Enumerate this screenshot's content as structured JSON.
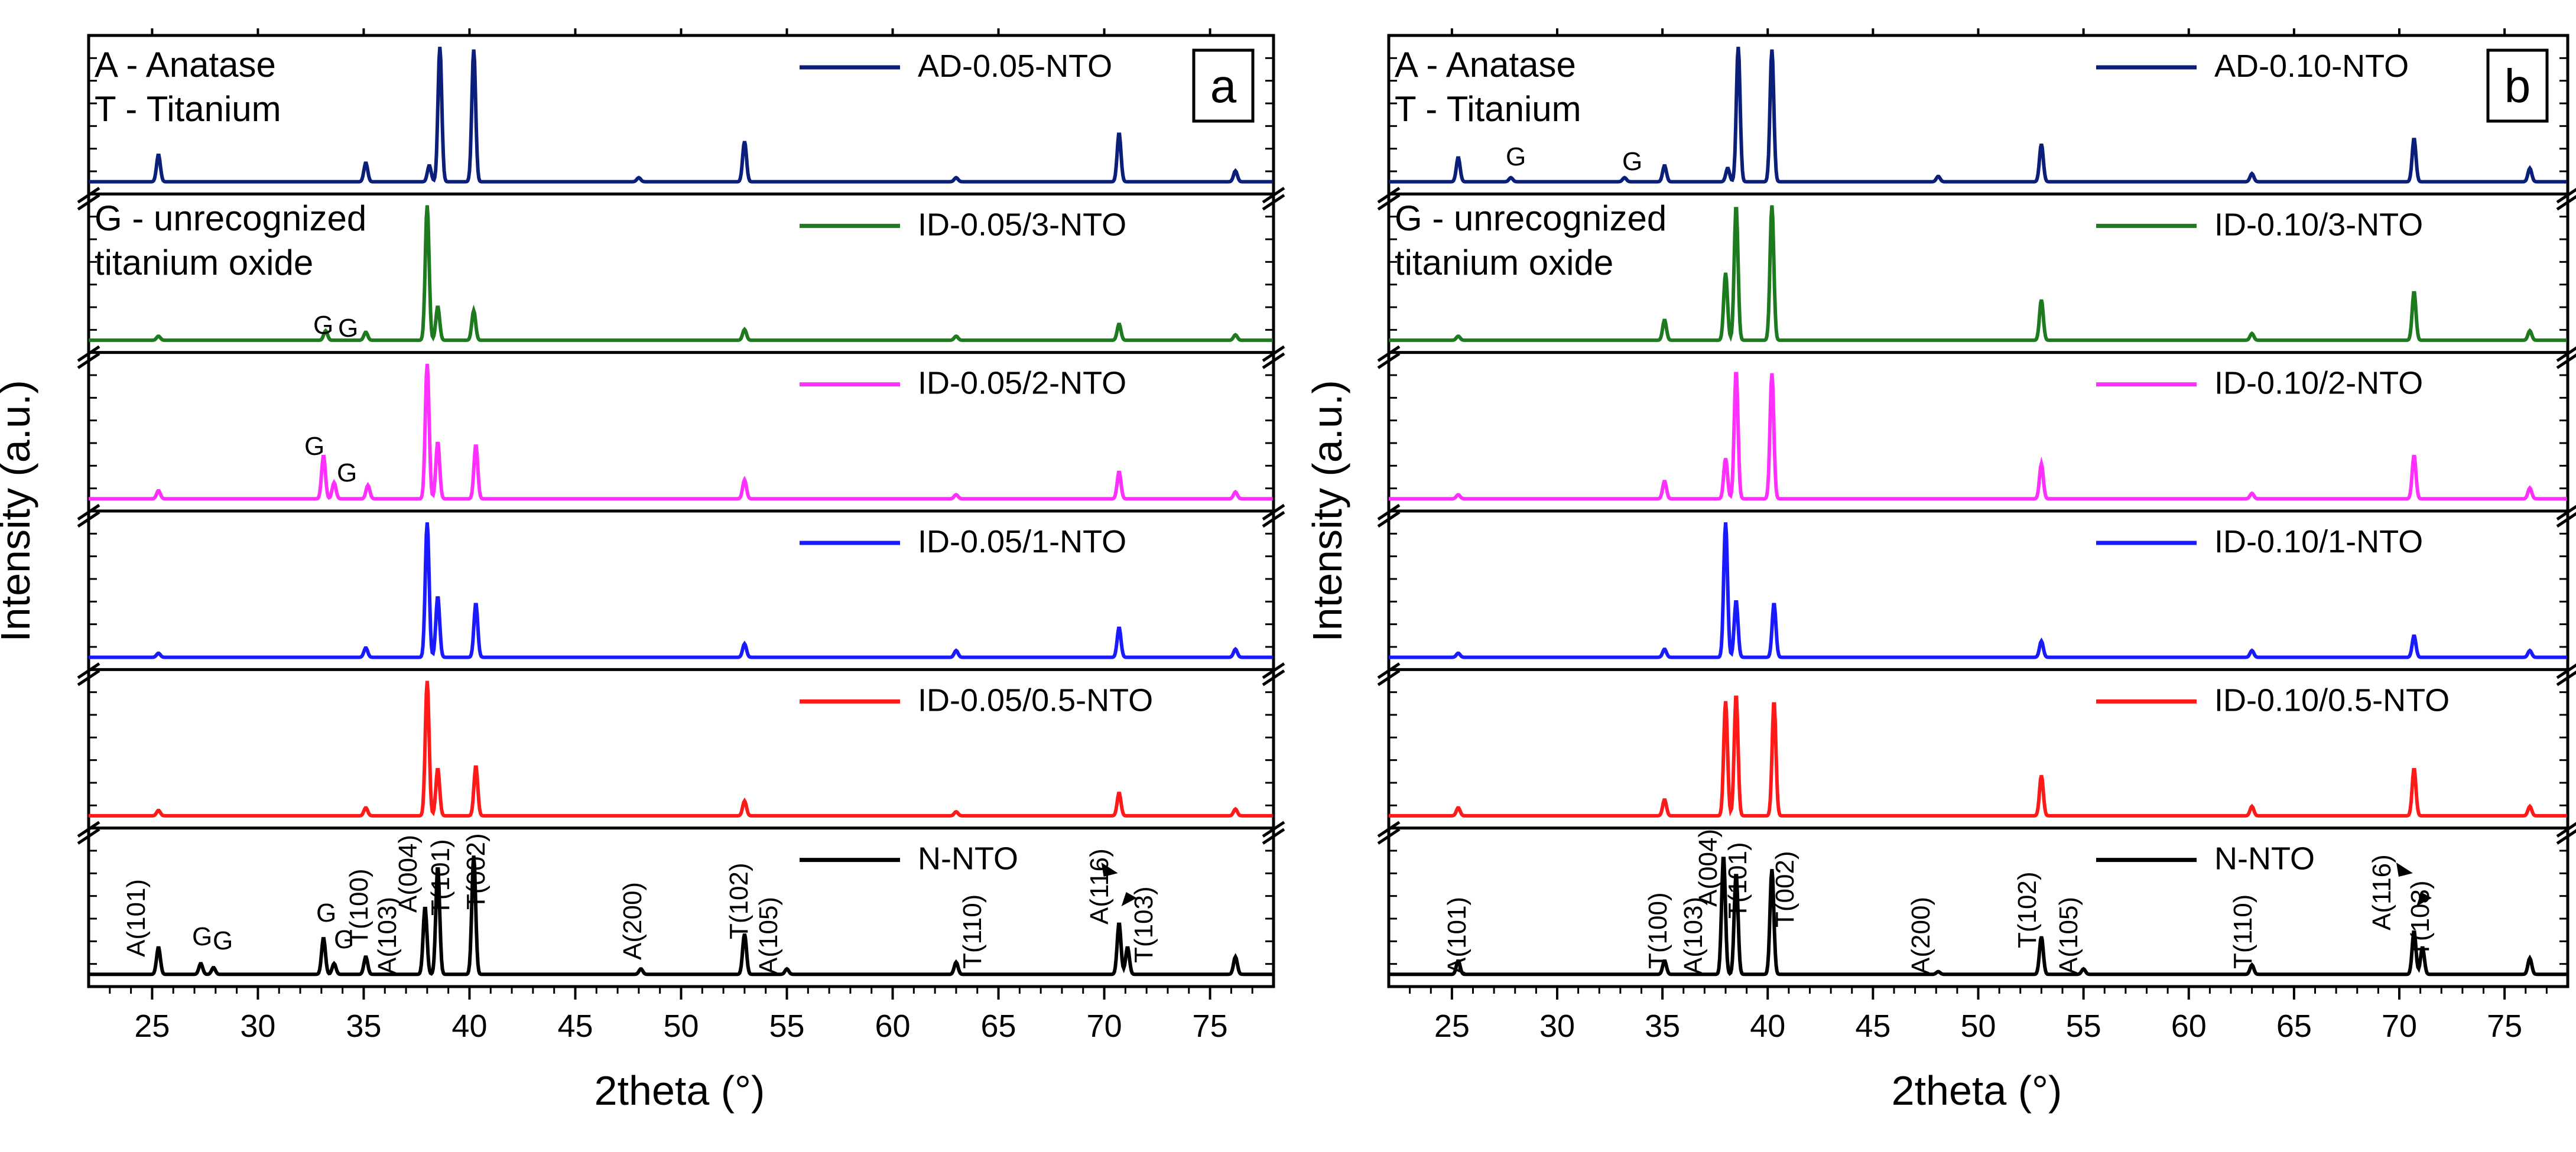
{
  "chart_data": [
    {
      "type": "line",
      "panel": "a",
      "xlabel": "2theta (°)",
      "ylabel": "Intensity (a.u.)",
      "xlim": [
        22,
        78
      ],
      "xticks": [
        "25",
        "30",
        "35",
        "40",
        "45",
        "50",
        "55",
        "60",
        "65",
        "70",
        "75"
      ],
      "notes": [
        "A - Anatase",
        "T - Titanium",
        "G - unrecognized",
        "titanium oxide"
      ],
      "series": [
        {
          "name": "AD-0.05-NTO",
          "color": "#0a1f7a",
          "peaks": [
            [
              25.3,
              0.2
            ],
            [
              35.1,
              0.14
            ],
            [
              38.1,
              0.12
            ],
            [
              38.6,
              1.0
            ],
            [
              40.2,
              0.98
            ],
            [
              48.0,
              0.03
            ],
            [
              53.0,
              0.3
            ],
            [
              63.0,
              0.03
            ],
            [
              70.7,
              0.36
            ],
            [
              76.2,
              0.08
            ]
          ],
          "g_marks": []
        },
        {
          "name": "ID-0.05/3-NTO",
          "color": "#1e7a1e",
          "peaks": [
            [
              25.3,
              0.03
            ],
            [
              33.2,
              0.07
            ],
            [
              35.1,
              0.06
            ],
            [
              38.0,
              1.0
            ],
            [
              38.5,
              0.25
            ],
            [
              40.2,
              0.22
            ],
            [
              53.0,
              0.08
            ],
            [
              63.0,
              0.03
            ],
            [
              70.7,
              0.12
            ],
            [
              76.2,
              0.04
            ]
          ],
          "g_marks": [
            "G",
            "G"
          ]
        },
        {
          "name": "ID-0.05/2-NTO",
          "color": "#ff30ff",
          "peaks": [
            [
              25.3,
              0.06
            ],
            [
              33.1,
              0.32
            ],
            [
              33.6,
              0.12
            ],
            [
              35.2,
              0.1
            ],
            [
              38.0,
              1.0
            ],
            [
              38.5,
              0.42
            ],
            [
              40.3,
              0.4
            ],
            [
              53.0,
              0.14
            ],
            [
              63.0,
              0.03
            ],
            [
              70.7,
              0.2
            ],
            [
              76.2,
              0.05
            ]
          ],
          "g_marks": [
            "G",
            "G"
          ]
        },
        {
          "name": "ID-0.05/1-NTO",
          "color": "#1a1aff",
          "peaks": [
            [
              25.3,
              0.03
            ],
            [
              35.1,
              0.07
            ],
            [
              38.0,
              1.0
            ],
            [
              38.5,
              0.45
            ],
            [
              40.3,
              0.4
            ],
            [
              53.0,
              0.1
            ],
            [
              63.0,
              0.05
            ],
            [
              70.7,
              0.22
            ],
            [
              76.2,
              0.06
            ]
          ],
          "g_marks": []
        },
        {
          "name": "ID-0.05/0.5-NTO",
          "color": "#ff1a1a",
          "peaks": [
            [
              25.3,
              0.04
            ],
            [
              35.1,
              0.06
            ],
            [
              38.0,
              1.0
            ],
            [
              38.5,
              0.35
            ],
            [
              40.3,
              0.37
            ],
            [
              53.0,
              0.11
            ],
            [
              63.0,
              0.03
            ],
            [
              70.7,
              0.17
            ],
            [
              76.2,
              0.05
            ]
          ],
          "g_marks": []
        },
        {
          "name": "N-NTO",
          "color": "#000000",
          "peaks": [
            [
              25.3,
              0.2
            ],
            [
              27.3,
              0.08
            ],
            [
              27.9,
              0.05
            ],
            [
              33.1,
              0.27
            ],
            [
              33.6,
              0.08
            ],
            [
              35.1,
              0.13
            ],
            [
              37.9,
              0.5
            ],
            [
              38.5,
              0.8
            ],
            [
              40.2,
              0.88
            ],
            [
              48.1,
              0.04
            ],
            [
              53.0,
              0.3
            ],
            [
              55.0,
              0.04
            ],
            [
              63.0,
              0.09
            ],
            [
              70.7,
              0.38
            ],
            [
              71.1,
              0.2
            ],
            [
              76.2,
              0.13
            ]
          ],
          "g_marks": [
            "G",
            "G",
            "G",
            "G"
          ]
        }
      ],
      "peak_labels": [
        "A(101)",
        "A(103)",
        "T(100)",
        "A(004)",
        "T(101)",
        "T(002)",
        "A(200)",
        "T(102)",
        "A(105)",
        "T(110)",
        "A(116)",
        "T(103)"
      ]
    },
    {
      "type": "line",
      "panel": "b",
      "xlabel": "2theta (°)",
      "ylabel": "Intensity (a.u.)",
      "xlim": [
        22,
        78
      ],
      "xticks": [
        "25",
        "30",
        "35",
        "40",
        "45",
        "50",
        "55",
        "60",
        "65",
        "70",
        "75"
      ],
      "notes": [
        "A - Anatase",
        "T - Titanium",
        "G - unrecognized",
        "titanium oxide"
      ],
      "series": [
        {
          "name": "AD-0.10-NTO",
          "color": "#0a1f7a",
          "peaks": [
            [
              25.3,
              0.18
            ],
            [
              27.8,
              0.03
            ],
            [
              33.2,
              0.03
            ],
            [
              35.1,
              0.12
            ],
            [
              38.1,
              0.1
            ],
            [
              38.6,
              1.0
            ],
            [
              40.2,
              0.98
            ],
            [
              48.1,
              0.04
            ],
            [
              53.0,
              0.28
            ],
            [
              63.0,
              0.06
            ],
            [
              70.7,
              0.32
            ],
            [
              76.2,
              0.1
            ]
          ],
          "g_marks": [
            "G",
            "G"
          ]
        },
        {
          "name": "ID-0.10/3-NTO",
          "color": "#1e7a1e",
          "peaks": [
            [
              25.3,
              0.03
            ],
            [
              35.1,
              0.15
            ],
            [
              38.0,
              0.5
            ],
            [
              38.5,
              1.0
            ],
            [
              40.2,
              1.0
            ],
            [
              53.0,
              0.3
            ],
            [
              63.0,
              0.05
            ],
            [
              70.7,
              0.36
            ],
            [
              76.2,
              0.07
            ]
          ],
          "g_marks": []
        },
        {
          "name": "ID-0.10/2-NTO",
          "color": "#ff30ff",
          "peaks": [
            [
              25.3,
              0.03
            ],
            [
              35.1,
              0.13
            ],
            [
              38.0,
              0.3
            ],
            [
              38.5,
              0.95
            ],
            [
              40.2,
              0.93
            ],
            [
              53.0,
              0.26
            ],
            [
              63.0,
              0.04
            ],
            [
              70.7,
              0.32
            ],
            [
              76.2,
              0.08
            ]
          ],
          "g_marks": []
        },
        {
          "name": "ID-0.10/1-NTO",
          "color": "#1a1aff",
          "peaks": [
            [
              25.3,
              0.03
            ],
            [
              35.1,
              0.06
            ],
            [
              38.0,
              1.0
            ],
            [
              38.5,
              0.42
            ],
            [
              40.3,
              0.4
            ],
            [
              53.0,
              0.12
            ],
            [
              63.0,
              0.05
            ],
            [
              70.7,
              0.16
            ],
            [
              76.2,
              0.05
            ]
          ],
          "g_marks": []
        },
        {
          "name": "ID-0.10/0.5-NTO",
          "color": "#ff1a1a",
          "peaks": [
            [
              25.3,
              0.06
            ],
            [
              35.1,
              0.12
            ],
            [
              38.0,
              0.85
            ],
            [
              38.5,
              0.9
            ],
            [
              40.3,
              0.85
            ],
            [
              53.0,
              0.3
            ],
            [
              63.0,
              0.07
            ],
            [
              70.7,
              0.35
            ],
            [
              76.2,
              0.07
            ]
          ],
          "g_marks": []
        },
        {
          "name": "N-NTO",
          "color": "#000000",
          "peaks": [
            [
              25.3,
              0.1
            ],
            [
              35.1,
              0.1
            ],
            [
              37.9,
              0.88
            ],
            [
              38.5,
              0.75
            ],
            [
              40.2,
              0.78
            ],
            [
              48.1,
              0.02
            ],
            [
              53.0,
              0.28
            ],
            [
              55.0,
              0.04
            ],
            [
              63.0,
              0.07
            ],
            [
              70.7,
              0.32
            ],
            [
              71.1,
              0.2
            ],
            [
              76.2,
              0.12
            ]
          ],
          "g_marks": []
        }
      ],
      "peak_labels": [
        "A(101)",
        "T(100)",
        "A(103)",
        "A(004)",
        "T(101)",
        "T(002)",
        "A(200)",
        "T(102)",
        "A(105)",
        "T(110)",
        "A(116)",
        "T(103)"
      ]
    }
  ]
}
